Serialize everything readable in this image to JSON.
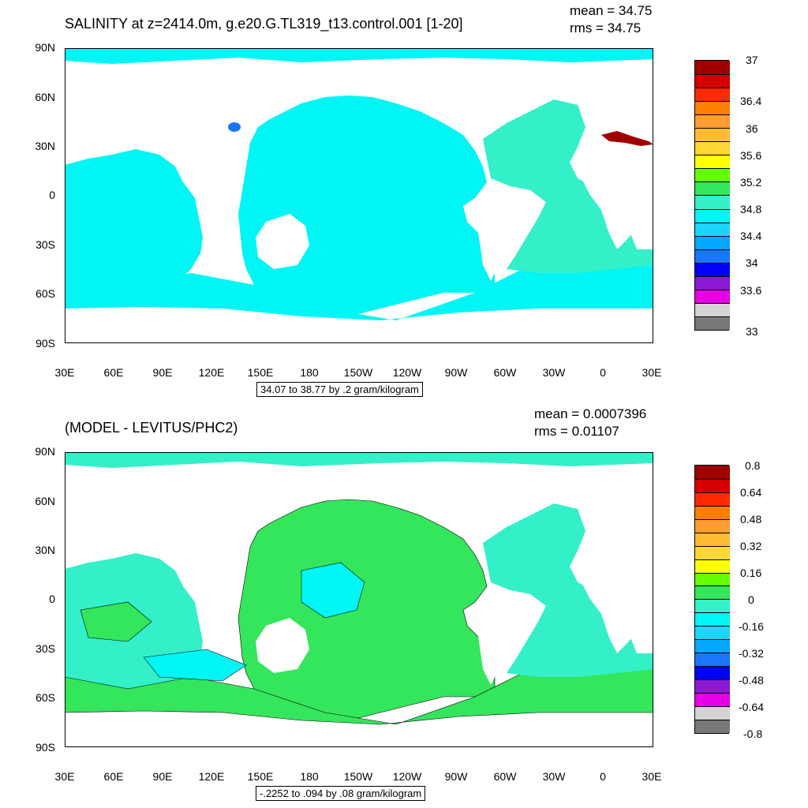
{
  "top_panel": {
    "title": "SALINITY at z=2414.0m, g.e20.G.TL319_t13.control.001 [1-20]",
    "mean": "mean = 34.75",
    "rms": "rms = 34.75",
    "range": "34.07 to 38.77 by .2 gram/kilogram",
    "colorbar_labels": [
      "37",
      "36.4",
      "36",
      "35.6",
      "35.2",
      "34.8",
      "34.4",
      "34",
      "33.6",
      "33"
    ],
    "colorbar_colors": [
      "#a00000",
      "#d40000",
      "#ff2a00",
      "#ff8000",
      "#ff9c33",
      "#ffbb33",
      "#ffd633",
      "#ffff00",
      "#66ff00",
      "#33e65c",
      "#33f0c8",
      "#00f5f5",
      "#1ad6ff",
      "#00a8ff",
      "#1a75ff",
      "#0000ff",
      "#8c19d4",
      "#e600e6",
      "#d4d4d4",
      "#787878"
    ]
  },
  "bottom_panel": {
    "title": "(MODEL - LEVITUS/PHC2)",
    "mean": "mean = 0.0007396",
    "rms": "rms = 0.01107",
    "range": "-.2252 to .094 by .08 gram/kilogram",
    "colorbar_labels": [
      "0.8",
      "0.64",
      "0.48",
      "0.32",
      "0.16",
      "0",
      "-0.16",
      "-0.32",
      "-0.48",
      "-0.64",
      "-0.8"
    ],
    "colorbar_colors": [
      "#a00000",
      "#d40000",
      "#ff2a00",
      "#ff8000",
      "#ff9c33",
      "#ffbb33",
      "#ffd633",
      "#ffff00",
      "#66ff00",
      "#33e65c",
      "#33f0c8",
      "#00f5f5",
      "#1ad6ff",
      "#00a8ff",
      "#1a75ff",
      "#0000ff",
      "#8c19d4",
      "#e600e6",
      "#d4d4d4",
      "#787878"
    ]
  },
  "axes": {
    "lat_labels": [
      "90N",
      "60N",
      "30N",
      "0",
      "30S",
      "60S",
      "90S"
    ],
    "lon_labels": [
      "30E",
      "60E",
      "90E",
      "120E",
      "150E",
      "180",
      "150W",
      "120W",
      "90W",
      "60W",
      "30W",
      "0",
      "30E"
    ]
  },
  "colors": {
    "ocean_top": "#00f5f5",
    "ocean_atlantic_top": "#33f0c8",
    "diff_green": "#33e65c",
    "diff_cyan": "#00f5f5",
    "diff_teal": "#33f0c8"
  }
}
